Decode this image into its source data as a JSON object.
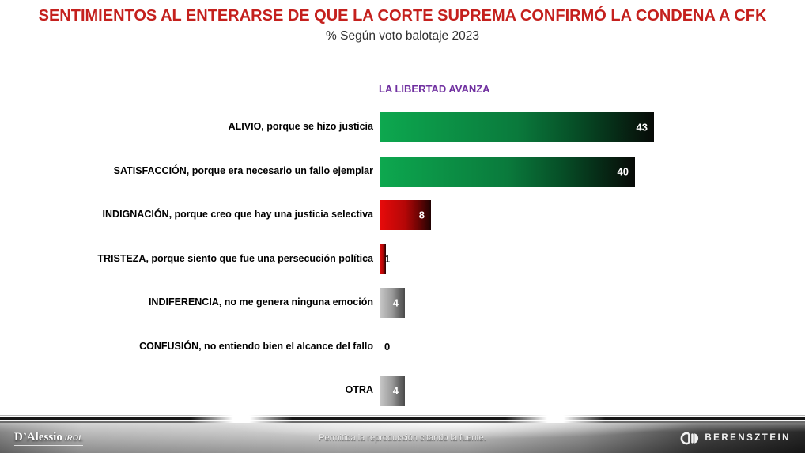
{
  "title": "SENTIMIENTOS AL ENTERARSE DE QUE LA CORTE SUPREMA CONFIRMÓ LA CONDENA A CFK",
  "subtitle": "% Según voto balotaje 2023",
  "column_header": "LA LIBERTAD AVANZA",
  "colors": {
    "title_red": "#C4201D",
    "header_purple": "#7030A0",
    "green_bar_start": "#0DA84F",
    "green_bar_end": "#070A07",
    "red_bar_start": "#E80A0A",
    "red_bar_end": "#200303",
    "gray_bar_start": "#C8C8C8",
    "gray_bar_end": "#4A4A4A"
  },
  "chart_data": {
    "type": "bar",
    "orientation": "horizontal",
    "title": "SENTIMIENTOS AL ENTERARSE DE QUE LA CORTE SUPREMA CONFIRMÓ LA CONDENA A CFK",
    "subtitle": "% Según voto balotaje 2023",
    "series_label": "LA LIBERTAD AVANZA",
    "unit": "%",
    "xlim": [
      0,
      45
    ],
    "grid": false,
    "value_labels_shown": true,
    "categories": [
      "ALIVIO, porque se hizo justicia",
      "SATISFACCIÓN, porque era necesario un fallo ejemplar",
      "INDIGNACIÓN, porque creo que hay una justicia selectiva",
      "TRISTEZA, porque siento que fue una persecución política",
      "INDIFERENCIA, no me genera ninguna emoción",
      "CONFUSIÓN, no entiendo bien el alcance del fallo",
      "OTRA"
    ],
    "values": [
      43,
      40,
      8,
      1,
      4,
      0,
      4
    ],
    "bar_colors": [
      "green",
      "green",
      "red",
      "red",
      "gray",
      "none",
      "gray"
    ]
  },
  "footer": {
    "note": "Permitida la reproducción citando la fuente.",
    "left_logo": {
      "name": "D’Alessio",
      "suffix": "IROL"
    },
    "right_logo": "BERENSZTEIN"
  }
}
